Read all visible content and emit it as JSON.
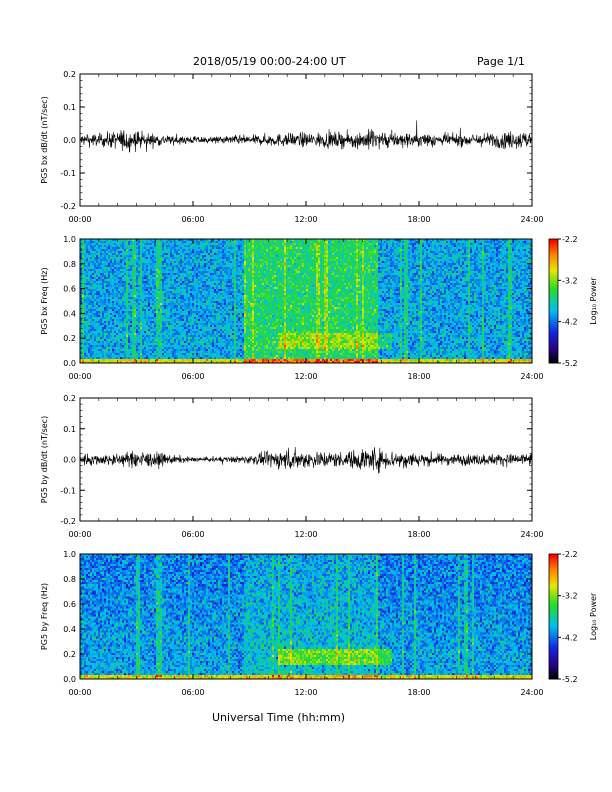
{
  "header": {
    "date_range": "2018/05/19  00:00-24:00 UT",
    "page": "Page 1/1"
  },
  "footer": {
    "xlabel": "Universal Time (hh:mm)"
  },
  "chart_data": [
    {
      "type": "line",
      "ylabel": "PG5 bx dB/dt (nT/sec)",
      "ylim": [
        -0.2,
        0.2
      ],
      "yticks": [
        "0.2",
        "0.1",
        "0.0",
        "-0.1",
        "-0.2"
      ],
      "xlim": [
        0,
        24
      ],
      "xticks": [
        "00:00",
        "06:00",
        "12:00",
        "18:00",
        "24:00"
      ],
      "series": [
        {
          "x": [
            0,
            1,
            2,
            2.5,
            3,
            4,
            5,
            6,
            7,
            8,
            9,
            10,
            11,
            12,
            13,
            14,
            15,
            15.5,
            16,
            17,
            18,
            19,
            20,
            21,
            22,
            23,
            24
          ],
          "y": [
            0.02,
            0.02,
            0.03,
            0.04,
            0.03,
            0.02,
            0.015,
            0.012,
            0.012,
            0.015,
            0.015,
            0.02,
            0.022,
            0.025,
            0.025,
            0.025,
            0.03,
            0.035,
            0.03,
            0.025,
            0.025,
            0.02,
            0.02,
            0.02,
            0.025,
            0.03,
            0.03
          ]
        }
      ]
    },
    {
      "type": "heatmap",
      "ylabel": "PG5 bx Freq (Hz)",
      "ylim": [
        0.0,
        1.0
      ],
      "yticks": [
        "1.0",
        "0.8",
        "0.6",
        "0.4",
        "0.2",
        "0.0"
      ],
      "xlim": [
        0,
        24
      ],
      "xticks": [
        "00:00",
        "06:00",
        "12:00",
        "18:00",
        "24:00"
      ],
      "colorbar": {
        "label": "Log₁₀ Power",
        "range": [
          -5.2,
          -2.2
        ],
        "ticks": [
          "-2.2",
          "-3.2",
          "-4.2",
          "-5.2"
        ]
      }
    },
    {
      "type": "line",
      "ylabel": "PG5 by dB/dt (nT/sec)",
      "ylim": [
        -0.2,
        0.2
      ],
      "yticks": [
        "0.2",
        "0.1",
        "0.0",
        "-0.1",
        "-0.2"
      ],
      "xlim": [
        0,
        24
      ],
      "xticks": [
        "00:00",
        "06:00",
        "12:00",
        "18:00",
        "24:00"
      ],
      "series": [
        {
          "x": [
            0,
            1,
            2,
            3,
            4,
            5,
            6,
            7,
            8,
            9,
            10,
            11,
            12,
            13,
            14,
            15,
            15.5,
            16,
            17,
            18,
            19,
            20,
            21,
            22,
            23,
            24
          ],
          "y": [
            0.02,
            0.02,
            0.02,
            0.03,
            0.025,
            0.015,
            0.008,
            0.008,
            0.01,
            0.015,
            0.025,
            0.04,
            0.03,
            0.03,
            0.025,
            0.04,
            0.05,
            0.035,
            0.03,
            0.025,
            0.02,
            0.02,
            0.02,
            0.02,
            0.02,
            0.025
          ]
        }
      ]
    },
    {
      "type": "heatmap",
      "ylabel": "PG5 by Freq (Hz)",
      "ylim": [
        0.0,
        1.0
      ],
      "yticks": [
        "1.0",
        "0.8",
        "0.6",
        "0.4",
        "0.2",
        "0.0"
      ],
      "xlim": [
        0,
        24
      ],
      "xticks": [
        "00:00",
        "06:00",
        "12:00",
        "18:00",
        "24:00"
      ],
      "colorbar": {
        "label": "Log₁₀ Power",
        "range": [
          -5.2,
          -2.2
        ],
        "ticks": [
          "-2.2",
          "-3.2",
          "-4.2",
          "-5.2"
        ]
      }
    }
  ]
}
